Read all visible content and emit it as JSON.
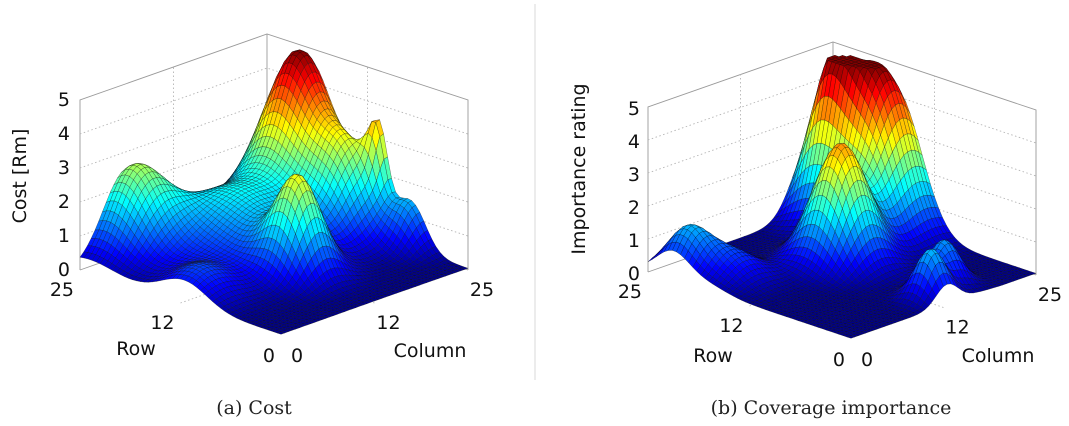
{
  "chart_data": [
    {
      "type": "surface",
      "caption": "(a) Cost",
      "zlabel": "Cost [Rm]",
      "xlabel": "Column",
      "ylabel": "Row",
      "zlim": [
        0,
        5
      ],
      "ztick_labels": [
        "0",
        "1",
        "2",
        "3",
        "4",
        "5"
      ],
      "column_tick_labels": [
        "0",
        "12",
        "25"
      ],
      "row_tick_labels": [
        "25",
        "12",
        "0"
      ],
      "colormap": "jet",
      "grid": true,
      "peaks": [
        {
          "column": 24,
          "row": 20,
          "height": 4.6,
          "width": 3.2
        },
        {
          "column": 6,
          "row": 24,
          "height": 2.3,
          "width": 3.0
        },
        {
          "column": 23,
          "row": 13,
          "height": 2.2,
          "width": 2.6
        },
        {
          "column": 25,
          "row": 11,
          "height": 2.0,
          "width": 1.0
        },
        {
          "column": 25,
          "row": 7,
          "height": 1.3,
          "width": 1.8
        },
        {
          "column": 14,
          "row": 18,
          "height": 1.8,
          "width": 5.5
        },
        {
          "column": 12,
          "row": 9,
          "height": 2.6,
          "width": 2.2
        },
        {
          "column": 2,
          "row": 12,
          "height": 0.8,
          "width": 2.8
        }
      ]
    },
    {
      "type": "surface",
      "caption": "(b) Coverage importance",
      "zlabel": "Importance rating",
      "xlabel": "Column",
      "ylabel": "Row",
      "zlim": [
        0,
        5
      ],
      "ztick_labels": [
        "0",
        "1",
        "2",
        "3",
        "4",
        "5"
      ],
      "column_tick_labels": [
        "0",
        "12",
        "25"
      ],
      "row_tick_labels": [
        "25",
        "12",
        "0"
      ],
      "colormap": "jet",
      "grid": true,
      "peaks": [
        {
          "column": 22,
          "row": 22,
          "height": 4.5,
          "width": 2.4
        },
        {
          "column": 14,
          "row": 14,
          "height": 3.6,
          "width": 2.6
        },
        {
          "column": 22,
          "row": 17,
          "height": 2.6,
          "width": 3.0
        },
        {
          "column": 25,
          "row": 17,
          "height": 2.4,
          "width": 3.0
        },
        {
          "column": 2,
          "row": 22,
          "height": 1.3,
          "width": 2.0
        },
        {
          "column": 13,
          "row": 2,
          "height": 1.5,
          "width": 1.5
        },
        {
          "column": 17,
          "row": 4,
          "height": 1.3,
          "width": 1.5
        },
        {
          "column": 4,
          "row": 18,
          "height": 0.8,
          "width": 2.5
        }
      ]
    }
  ]
}
